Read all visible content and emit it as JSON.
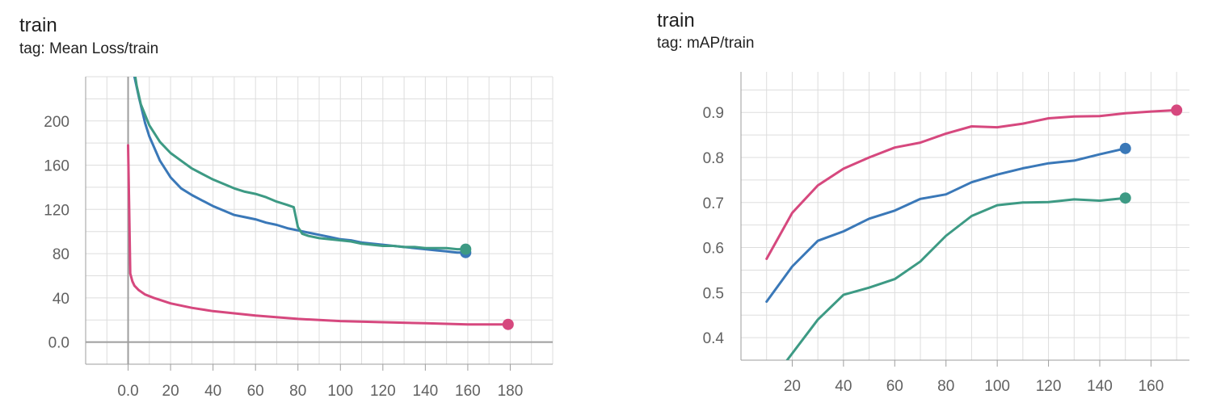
{
  "chart_data": [
    {
      "type": "line",
      "title": "train",
      "subtitle": "tag: Mean Loss/train",
      "xlabel": "",
      "ylabel": "",
      "xlim": [
        -20,
        200
      ],
      "ylim": [
        -20,
        240
      ],
      "x_ticks": [
        0,
        20,
        40,
        60,
        80,
        100,
        120,
        140,
        160,
        180
      ],
      "y_ticks": [
        0,
        40,
        80,
        120,
        160,
        200
      ],
      "grid": true,
      "series": [
        {
          "color": "#d6487e",
          "x": [
            0,
            0.5,
            1,
            2,
            3,
            5,
            8,
            12,
            20,
            30,
            40,
            60,
            80,
            100,
            120,
            140,
            160,
            179
          ],
          "y": [
            178,
            120,
            62,
            55,
            51,
            47,
            43,
            40,
            35,
            31,
            28,
            24,
            21,
            19,
            18,
            17,
            16,
            16
          ]
        },
        {
          "color": "#3a78b8",
          "x": [
            3,
            5,
            8,
            10,
            15,
            20,
            25,
            30,
            35,
            40,
            45,
            50,
            55,
            60,
            65,
            70,
            75,
            80,
            85,
            90,
            95,
            100,
            105,
            110,
            115,
            120,
            125,
            130,
            135,
            140,
            145,
            150,
            155,
            159
          ],
          "y": [
            240,
            222,
            198,
            186,
            164,
            149,
            139,
            133,
            128,
            123,
            119,
            115,
            113,
            111,
            108,
            106,
            103,
            101,
            99,
            97,
            95,
            93,
            92,
            90,
            89,
            88,
            87,
            86,
            85,
            84,
            83,
            82,
            81,
            81
          ]
        },
        {
          "color": "#3d9a84",
          "x": [
            3,
            4,
            6,
            10,
            15,
            20,
            25,
            30,
            35,
            40,
            45,
            50,
            55,
            60,
            65,
            70,
            75,
            78,
            80,
            82,
            85,
            90,
            95,
            100,
            105,
            110,
            115,
            120,
            125,
            130,
            135,
            140,
            145,
            150,
            155,
            159
          ],
          "y": [
            245,
            232,
            215,
            196,
            181,
            171,
            164,
            157,
            152,
            147,
            143,
            139,
            136,
            134,
            131,
            127,
            124,
            122,
            104,
            98,
            96,
            94,
            93,
            92,
            91,
            89,
            88,
            87,
            87,
            86,
            86,
            85,
            85,
            85,
            84,
            84
          ]
        }
      ]
    },
    {
      "type": "line",
      "title": "train",
      "subtitle": "tag: mAP/train",
      "xlabel": "",
      "ylabel": "",
      "xlim": [
        0,
        175
      ],
      "ylim": [
        0.35,
        0.99
      ],
      "x_ticks": [
        20,
        40,
        60,
        80,
        100,
        120,
        140,
        160
      ],
      "y_ticks": [
        0.4,
        0.5,
        0.6,
        0.7,
        0.8,
        0.9
      ],
      "grid": true,
      "series": [
        {
          "color": "#d6487e",
          "x": [
            10,
            20,
            30,
            40,
            50,
            60,
            70,
            80,
            90,
            100,
            110,
            120,
            130,
            140,
            150,
            160,
            170
          ],
          "y": [
            0.575,
            0.677,
            0.738,
            0.775,
            0.8,
            0.822,
            0.833,
            0.853,
            0.869,
            0.867,
            0.875,
            0.887,
            0.891,
            0.892,
            0.898,
            0.902,
            0.905
          ]
        },
        {
          "color": "#3a78b8",
          "x": [
            10,
            20,
            30,
            40,
            50,
            60,
            70,
            80,
            90,
            100,
            110,
            120,
            130,
            140,
            150
          ],
          "y": [
            0.48,
            0.558,
            0.615,
            0.636,
            0.664,
            0.682,
            0.708,
            0.718,
            0.745,
            0.762,
            0.776,
            0.787,
            0.793,
            0.807,
            0.82
          ]
        },
        {
          "color": "#3d9a84",
          "x": [
            18,
            30,
            40,
            50,
            60,
            70,
            80,
            90,
            100,
            110,
            120,
            130,
            140,
            150
          ],
          "y": [
            0.35,
            0.44,
            0.495,
            0.511,
            0.53,
            0.569,
            0.626,
            0.67,
            0.694,
            0.7,
            0.701,
            0.707,
            0.704,
            0.71
          ]
        }
      ]
    }
  ]
}
